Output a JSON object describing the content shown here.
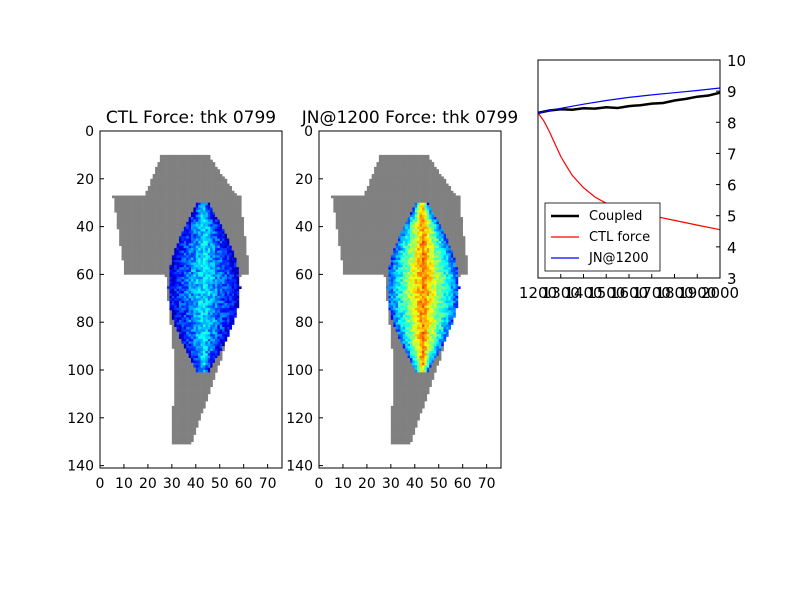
{
  "chart_data": [
    {
      "type": "heatmap",
      "title": "CTL Force: thk 0799",
      "x_ticks": [
        0,
        10,
        20,
        30,
        40,
        50,
        60,
        70
      ],
      "y_ticks": [
        0,
        20,
        40,
        60,
        80,
        100,
        120,
        140
      ],
      "xlim": [
        0,
        76
      ],
      "ylim": [
        141,
        0
      ],
      "mask_color": "#808080",
      "colormap": "jet",
      "intensity": 0.35
    },
    {
      "type": "heatmap",
      "title": "JN@1200 Force: thk 0799",
      "x_ticks": [
        0,
        10,
        20,
        30,
        40,
        50,
        60,
        70
      ],
      "y_ticks": [
        0,
        20,
        40,
        60,
        80,
        100,
        120,
        140
      ],
      "xlim": [
        0,
        76
      ],
      "ylim": [
        141,
        0
      ],
      "mask_color": "#808080",
      "colormap": "jet",
      "intensity": 0.75
    },
    {
      "type": "line",
      "title": "",
      "xlim": [
        1200,
        2000
      ],
      "ylim": [
        3,
        10
      ],
      "x_ticks": [
        1200,
        1300,
        1400,
        1500,
        1600,
        1700,
        1800,
        1900,
        2000
      ],
      "x_tick_labels": [
        "1200",
        "1300",
        "1400",
        "1500",
        "1600",
        "1700",
        "1800",
        "1900",
        "2000"
      ],
      "y_ticks": [
        3,
        4,
        5,
        6,
        7,
        8,
        9,
        10
      ],
      "y_axis_side": "right",
      "legend_position": "lower-left",
      "series": [
        {
          "name": "Coupled",
          "color": "#000000",
          "x": [
            1200,
            1250,
            1300,
            1350,
            1400,
            1450,
            1500,
            1550,
            1600,
            1650,
            1700,
            1750,
            1800,
            1850,
            1900,
            1950,
            2000
          ],
          "y": [
            8.3,
            8.38,
            8.42,
            8.4,
            8.45,
            8.44,
            8.48,
            8.46,
            8.52,
            8.55,
            8.6,
            8.62,
            8.7,
            8.75,
            8.82,
            8.86,
            8.95
          ]
        },
        {
          "name": "CTL force",
          "color": "#ff0000",
          "x": [
            1200,
            1225,
            1250,
            1275,
            1300,
            1325,
            1350,
            1375,
            1400,
            1450,
            1500,
            1550,
            1600,
            1700,
            1800,
            1900,
            2000
          ],
          "y": [
            8.3,
            8.05,
            7.7,
            7.3,
            6.9,
            6.6,
            6.3,
            6.1,
            5.9,
            5.6,
            5.4,
            5.25,
            5.15,
            5.0,
            4.85,
            4.7,
            4.55
          ]
        },
        {
          "name": "JN@1200",
          "color": "#0000ff",
          "x": [
            1200,
            1300,
            1400,
            1500,
            1600,
            1700,
            1800,
            1900,
            2000
          ],
          "y": [
            8.3,
            8.45,
            8.58,
            8.7,
            8.8,
            8.88,
            8.95,
            9.02,
            9.1
          ]
        }
      ]
    }
  ]
}
